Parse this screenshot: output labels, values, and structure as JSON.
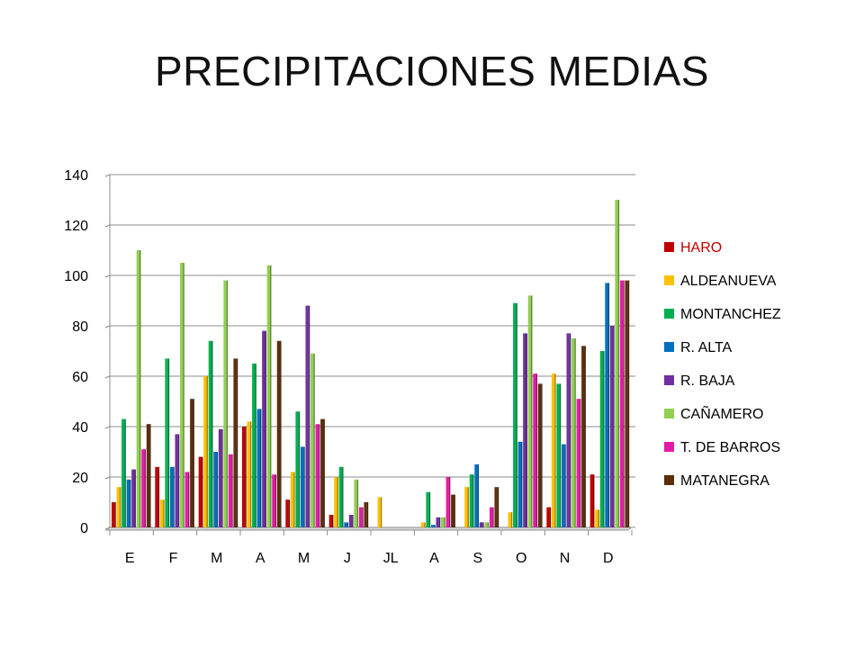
{
  "title": "PRECIPITACIONES MEDIAS",
  "chart_data": {
    "type": "bar",
    "title": "PRECIPITACIONES MEDIAS",
    "categories": [
      "E",
      "F",
      "M",
      "A",
      "M",
      "J",
      "JL",
      "A",
      "S",
      "O",
      "N",
      "D"
    ],
    "ylim": [
      0,
      140
    ],
    "yticks": [
      0,
      20,
      40,
      60,
      80,
      100,
      120,
      140
    ],
    "grid": true,
    "legend_position": "right",
    "series": [
      {
        "name": "HARO",
        "color": "#c00000",
        "values": [
          10,
          24,
          28,
          40,
          11,
          5,
          0,
          0,
          0,
          0,
          8,
          21
        ]
      },
      {
        "name": "ALDEANUEVA",
        "color": "#ffc000",
        "values": [
          16,
          11,
          60,
          42,
          22,
          20,
          12,
          2,
          16,
          6,
          61,
          7
        ]
      },
      {
        "name": "MONTANCHEZ",
        "color": "#00b050",
        "values": [
          43,
          67,
          74,
          65,
          46,
          24,
          0,
          14,
          21,
          89,
          57,
          70
        ]
      },
      {
        "name": "R. ALTA",
        "color": "#0070c0",
        "values": [
          19,
          24,
          30,
          47,
          32,
          2,
          0,
          1,
          25,
          34,
          33,
          97
        ]
      },
      {
        "name": "R. BAJA",
        "color": "#7030a0",
        "values": [
          23,
          37,
          39,
          78,
          88,
          5,
          0,
          4,
          2,
          77,
          77,
          80
        ]
      },
      {
        "name": "CAÑAMERO",
        "color": "#92d050",
        "values": [
          110,
          105,
          98,
          104,
          69,
          19,
          0,
          4,
          2,
          92,
          75,
          130
        ]
      },
      {
        "name": "T. DE BARROS",
        "color": "#e61aa8",
        "values": [
          31,
          22,
          29,
          21,
          41,
          8,
          0,
          20,
          8,
          61,
          51,
          98
        ]
      },
      {
        "name": "MATANEGRA",
        "color": "#5c2e0a",
        "values": [
          41,
          51,
          67,
          74,
          43,
          10,
          0,
          13,
          16,
          57,
          72,
          98
        ]
      }
    ]
  }
}
